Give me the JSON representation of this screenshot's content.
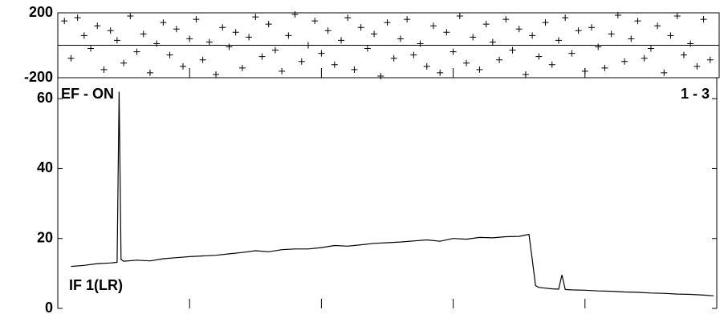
{
  "chart_data": [
    {
      "type": "scatter",
      "color": "#000000",
      "x": [
        1,
        2,
        3,
        4,
        5,
        6,
        7,
        8,
        9,
        10,
        11,
        12,
        13,
        14,
        15,
        16,
        17,
        18,
        19,
        20,
        21,
        22,
        23,
        24,
        25,
        26,
        27,
        28,
        29,
        30,
        31,
        32,
        33,
        34,
        35,
        36,
        37,
        38,
        39,
        40,
        41,
        42,
        43,
        44,
        45,
        46,
        47,
        48,
        49,
        50,
        51,
        52,
        53,
        54,
        55,
        56,
        57,
        58,
        59,
        60,
        61,
        62,
        63,
        64,
        65,
        66,
        67,
        68,
        69,
        70,
        71,
        72,
        73,
        74,
        75,
        76,
        77,
        78,
        79,
        80,
        81,
        82,
        83,
        84,
        85,
        86,
        87,
        88,
        89,
        90,
        91,
        92,
        93,
        94,
        95,
        96,
        97,
        98,
        99
      ],
      "values": [
        150,
        -80,
        170,
        60,
        -20,
        120,
        -150,
        90,
        30,
        -110,
        180,
        -40,
        70,
        -170,
        10,
        140,
        -60,
        100,
        -130,
        40,
        160,
        -90,
        20,
        -180,
        110,
        -10,
        80,
        -140,
        50,
        175,
        -70,
        130,
        -30,
        -160,
        60,
        190,
        -100,
        0,
        150,
        -50,
        90,
        -120,
        30,
        170,
        -150,
        110,
        -20,
        70,
        -190,
        140,
        -80,
        40,
        160,
        -60,
        10,
        -130,
        120,
        -170,
        80,
        -40,
        180,
        -110,
        50,
        -150,
        130,
        20,
        -90,
        160,
        -30,
        100,
        -180,
        60,
        -70,
        140,
        -120,
        30,
        170,
        -50,
        90,
        -160,
        110,
        -10,
        -140,
        70,
        185,
        -100,
        40,
        150,
        -80,
        -20,
        120,
        -170,
        60,
        180,
        -60,
        10,
        -130,
        160,
        -90
      ],
      "xlim": [
        0,
        100
      ],
      "xticks": [
        20,
        40,
        60,
        80
      ],
      "ylim": [
        -200,
        200
      ],
      "yticks": [
        -200,
        200
      ]
    },
    {
      "type": "line",
      "color": "#000000",
      "title": "EF - ON",
      "subtitle": "1 - 3",
      "annotation": "IF 1(LR)",
      "x": [
        2,
        4,
        6,
        8,
        9,
        9.3,
        9.6,
        10,
        12,
        14,
        16,
        18,
        20,
        22,
        24,
        26,
        28,
        30,
        32,
        34,
        36,
        38,
        40,
        42,
        44,
        46,
        48,
        50,
        52,
        54,
        56,
        58,
        60,
        62,
        64,
        66,
        68,
        70,
        71.5,
        72,
        72.5,
        73,
        74,
        75,
        76,
        76.5,
        77,
        78,
        80,
        82,
        84,
        86,
        88,
        90,
        92,
        94,
        96,
        98,
        99.5
      ],
      "values": [
        12,
        12.3,
        12.8,
        13,
        13.2,
        62,
        14,
        13.5,
        13.8,
        13.6,
        14.2,
        14.5,
        14.8,
        15,
        15.2,
        15.6,
        16,
        16.5,
        16.2,
        16.8,
        17,
        17,
        17.4,
        18,
        17.8,
        18.2,
        18.6,
        18.8,
        19,
        19.3,
        19.6,
        19.2,
        20,
        19.8,
        20.3,
        20.2,
        20.5,
        20.6,
        21.2,
        14,
        6.5,
        6,
        5.8,
        5.6,
        5.5,
        9.6,
        5.4,
        5.3,
        5.2,
        5,
        4.9,
        4.7,
        4.6,
        4.4,
        4.3,
        4.1,
        4,
        3.8,
        3.6
      ],
      "xlim": [
        0,
        100
      ],
      "xticks": [
        20,
        40,
        60,
        80
      ],
      "ylim": [
        0,
        66
      ],
      "yticks": [
        0,
        20,
        40,
        60
      ]
    }
  ]
}
